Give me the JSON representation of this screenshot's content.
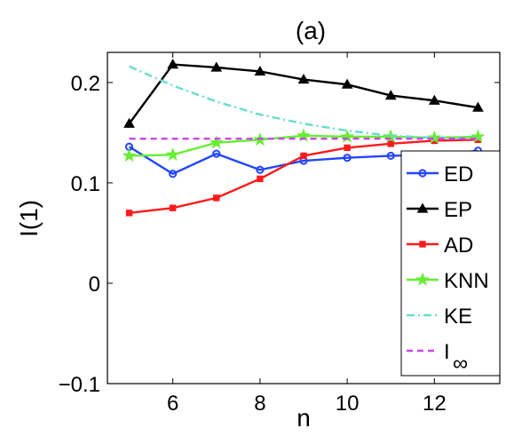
{
  "chart_data": {
    "type": "line",
    "title": "(a)",
    "xlabel": "n",
    "ylabel": "I(1)",
    "xlim": [
      4.5,
      13.5
    ],
    "ylim": [
      -0.1,
      0.23
    ],
    "xticks": [
      6,
      8,
      10,
      12
    ],
    "yticks": [
      -0.1,
      0,
      0.1,
      0.2
    ],
    "xtick_labels": [
      "6",
      "8",
      "10",
      "12"
    ],
    "ytick_labels": [
      "−0.1",
      "0",
      "0.1",
      "0.2"
    ],
    "grid": false,
    "legend_position": "lower-right",
    "x": [
      5,
      6,
      7,
      8,
      9,
      10,
      11,
      12,
      13
    ],
    "series": [
      {
        "name": "ED",
        "color": "#2346ff",
        "marker": "circle",
        "style": "solid",
        "values": [
          0.136,
          0.109,
          0.129,
          0.113,
          0.122,
          0.125,
          0.127,
          0.128,
          0.132
        ]
      },
      {
        "name": "EP",
        "color": "#000000",
        "marker": "triangle",
        "style": "solid",
        "values": [
          0.159,
          0.218,
          0.215,
          0.211,
          0.203,
          0.198,
          0.187,
          0.182,
          0.175
        ]
      },
      {
        "name": "AD",
        "color": "#ff1a1a",
        "marker": "square",
        "style": "solid",
        "values": [
          0.07,
          0.075,
          0.085,
          0.104,
          0.127,
          0.135,
          0.139,
          0.142,
          0.143
        ]
      },
      {
        "name": "KNN",
        "color": "#66ee33",
        "marker": "star",
        "style": "solid",
        "values": [
          0.127,
          0.128,
          0.14,
          0.143,
          0.147,
          0.146,
          0.146,
          0.145,
          0.146
        ]
      },
      {
        "name": "KE",
        "color": "#66ddcc",
        "marker": "none",
        "style": "dashdot",
        "x": [
          5,
          6,
          7,
          8,
          9,
          10,
          11,
          12,
          13
        ],
        "values": [
          0.216,
          0.197,
          0.181,
          0.168,
          0.159,
          0.152,
          0.147,
          0.145,
          0.144
        ]
      },
      {
        "name": "I∞",
        "color": "#cc44ee",
        "marker": "none",
        "style": "dashed",
        "x": [
          5,
          13
        ],
        "values": [
          0.144,
          0.144
        ]
      }
    ],
    "legend_entries": [
      "ED",
      "EP",
      "AD",
      "KNN",
      "KE",
      "I"
    ],
    "legend_subscript": "∞"
  }
}
